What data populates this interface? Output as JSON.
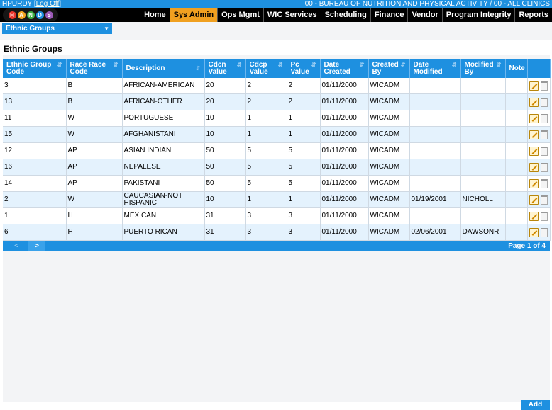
{
  "header": {
    "user": "HPURDY",
    "logoff": "Log Off",
    "clinic": "00 - BUREAU OF NUTRITION AND PHYSICAL ACTIVITY / 00 - ALL CLINICS",
    "logo_letters": [
      "H",
      "A",
      "N",
      "D",
      "S"
    ]
  },
  "nav": {
    "items": [
      "Home",
      "Sys Admin",
      "Ops Mgmt",
      "WIC Services",
      "Scheduling",
      "Finance",
      "Vendor",
      "Program Integrity",
      "Reports"
    ],
    "active": "Sys Admin"
  },
  "subnav": {
    "dropdown_value": "Ethnic Groups"
  },
  "page": {
    "title": "Ethnic Groups"
  },
  "table": {
    "headers": [
      "Ethnic Group Code",
      "Race Race Code",
      "Description",
      "Cdcn Value",
      "Cdcp Value",
      "Pc Value",
      "Date Created",
      "Created By",
      "Date Modified",
      "Modified By",
      "Note"
    ],
    "rows": [
      [
        "3",
        "B",
        "AFRICAN-AMERICAN",
        "20",
        "2",
        "2",
        "01/11/2000",
        "WICADM",
        "",
        "",
        ""
      ],
      [
        "13",
        "B",
        "AFRICAN-OTHER",
        "20",
        "2",
        "2",
        "01/11/2000",
        "WICADM",
        "",
        "",
        ""
      ],
      [
        "11",
        "W",
        "PORTUGUESE",
        "10",
        "1",
        "1",
        "01/11/2000",
        "WICADM",
        "",
        "",
        ""
      ],
      [
        "15",
        "W",
        "AFGHANISTANI",
        "10",
        "1",
        "1",
        "01/11/2000",
        "WICADM",
        "",
        "",
        ""
      ],
      [
        "12",
        "AP",
        "ASIAN INDIAN",
        "50",
        "5",
        "5",
        "01/11/2000",
        "WICADM",
        "",
        "",
        ""
      ],
      [
        "16",
        "AP",
        "NEPALESE",
        "50",
        "5",
        "5",
        "01/11/2000",
        "WICADM",
        "",
        "",
        ""
      ],
      [
        "14",
        "AP",
        "PAKISTANI",
        "50",
        "5",
        "5",
        "01/11/2000",
        "WICADM",
        "",
        "",
        ""
      ],
      [
        "2",
        "W",
        "CAUCASIAN-NOT HISPANIC",
        "10",
        "1",
        "1",
        "01/11/2000",
        "WICADM",
        "01/19/2001",
        "NICHOLL",
        ""
      ],
      [
        "1",
        "H",
        "MEXICAN",
        "31",
        "3",
        "3",
        "01/11/2000",
        "WICADM",
        "",
        "",
        ""
      ],
      [
        "6",
        "H",
        "PUERTO RICAN",
        "31",
        "3",
        "3",
        "01/11/2000",
        "WICADM",
        "02/06/2001",
        "DAWSONR",
        ""
      ]
    ]
  },
  "pager": {
    "prev": "<",
    "next": ">",
    "page_info": "Page 1 of 4"
  },
  "actions": {
    "add": "Add"
  },
  "colors": {
    "accent": "#1e90e0",
    "active_tab": "#f0a020",
    "row_alt": "#e4f2fd"
  }
}
